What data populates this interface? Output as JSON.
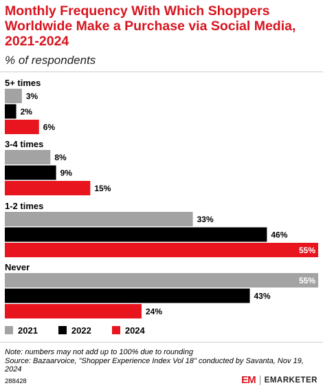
{
  "header": {
    "title": "Monthly Frequency With Which Shoppers Worldwide Make a Purchase via Social Media, 2021-2024",
    "subtitle": "% of respondents"
  },
  "chart_data": {
    "type": "bar",
    "orientation": "horizontal",
    "categories": [
      "5+ times",
      "3-4 times",
      "1-2 times",
      "Never"
    ],
    "series": [
      {
        "name": "2021",
        "color": "#a3a3a3",
        "values": [
          3,
          8,
          33,
          55
        ]
      },
      {
        "name": "2022",
        "color": "#000000",
        "values": [
          2,
          9,
          46,
          43
        ]
      },
      {
        "name": "2024",
        "color": "#e8141e",
        "values": [
          6,
          15,
          55,
          24
        ]
      }
    ],
    "value_suffix": "%",
    "xlim": [
      0,
      55
    ],
    "grid": false,
    "legend_position": "bottom-left"
  },
  "footer": {
    "note": "Note: numbers may not add up to 100% due to rounding",
    "source": "Source: Bazaarvoice, \"Shopper Experience Index Vol 18\" conducted by Savanta, Nov 19, 2024",
    "chart_id": "288428",
    "brand_mark": "EM",
    "brand_name": "EMARKETER"
  },
  "colors": {
    "title": "#d7141e",
    "inside_label": "#ffffff"
  }
}
